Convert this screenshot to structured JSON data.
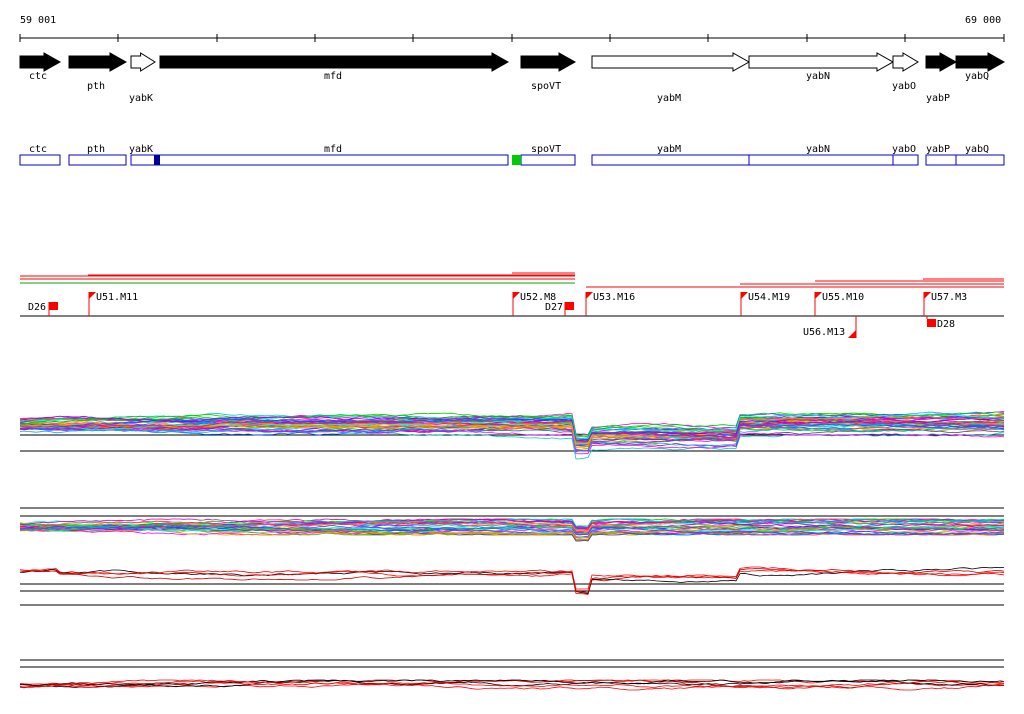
{
  "ruler": {
    "start_label": "59 001",
    "end_label": "69 000"
  },
  "genes": [
    {
      "name": "ctc",
      "strand": "+",
      "filled": true,
      "label_row": 1
    },
    {
      "name": "pth",
      "strand": "+",
      "filled": true,
      "label_row": 2
    },
    {
      "name": "yabK",
      "strand": "+",
      "filled": false,
      "label_row": 3
    },
    {
      "name": "mfd",
      "strand": "+",
      "filled": true,
      "label_row": 1
    },
    {
      "name": "spoVT",
      "strand": "+",
      "filled": true,
      "label_row": 2
    },
    {
      "name": "yabM",
      "strand": "+",
      "filled": false,
      "label_row": 3
    },
    {
      "name": "yabN",
      "strand": "+",
      "filled": false,
      "label_row": 1
    },
    {
      "name": "yabO",
      "strand": "+",
      "filled": false,
      "label_row": 2
    },
    {
      "name": "yabP",
      "strand": "+",
      "filled": true,
      "label_row": 3
    },
    {
      "name": "yabQ",
      "strand": "+",
      "filled": true,
      "label_row": 1
    }
  ],
  "features": [
    {
      "label": "D26",
      "type": "down",
      "color": "#ff0000"
    },
    {
      "label": "U51.M11",
      "type": "up",
      "color": "#ff0000"
    },
    {
      "label": "U52.M8",
      "type": "up",
      "color": "#ff0000"
    },
    {
      "label": "D27",
      "type": "down",
      "color": "#ff0000"
    },
    {
      "label": "U53.M16",
      "type": "up",
      "color": "#ff0000"
    },
    {
      "label": "U54.M19",
      "type": "up",
      "color": "#ff0000"
    },
    {
      "label": "U55.M10",
      "type": "up",
      "color": "#ff0000"
    },
    {
      "label": "U56.M13",
      "type": "up",
      "color": "#ff0000"
    },
    {
      "label": "U57.M3",
      "type": "up",
      "color": "#ff0000"
    },
    {
      "label": "D28",
      "type": "down",
      "color": "#ff0000"
    }
  ],
  "colors": {
    "gene_box": "#0000cc",
    "feature": "#ff0000",
    "highlight_green": "#00cc00",
    "highlight_blue": "#000099",
    "profile_palette": [
      "#ff00ff",
      "#00aaff",
      "#ff8800",
      "#00cc00",
      "#8800ff",
      "#00ffcc",
      "#ff0088",
      "#0066ff",
      "#aaaa00",
      "#cc00cc",
      "#00cccc",
      "#ff4444",
      "#44aa44",
      "#4444ff",
      "#ffaa00",
      "#663399"
    ]
  }
}
